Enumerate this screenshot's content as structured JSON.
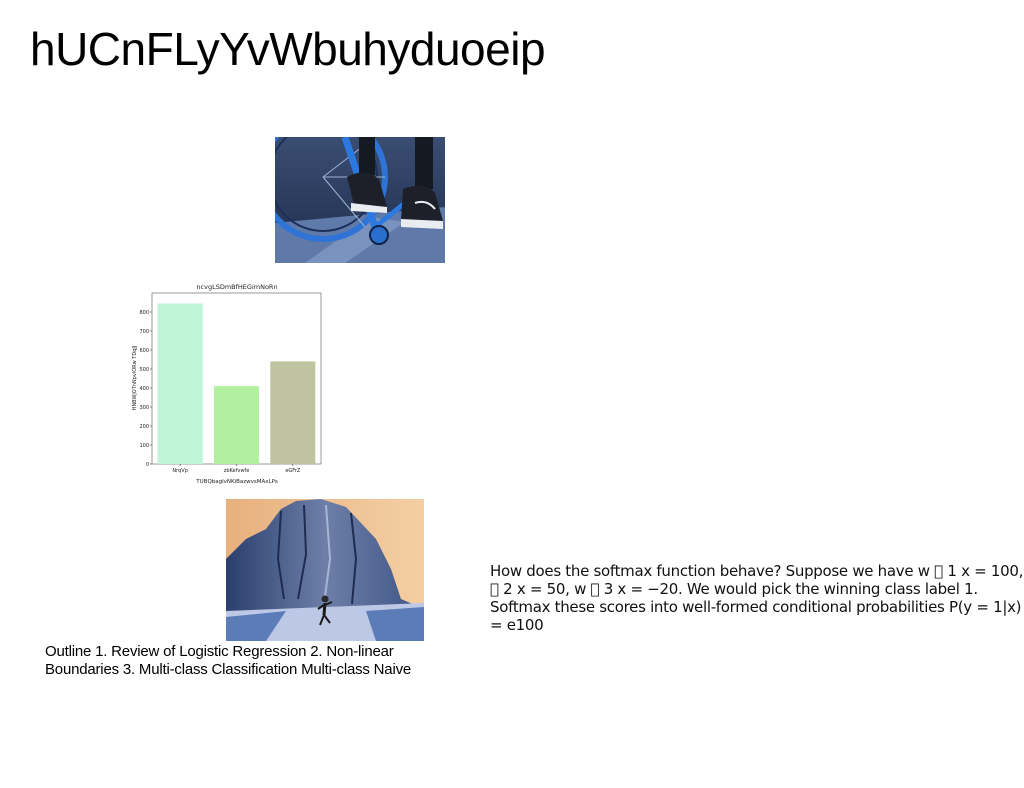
{
  "slide": {
    "title": "hUCnFLyYvWbuhyduoeip",
    "outline_text": "Outline 1. Review of Logistic Regression 2. Non-linear Boundaries 3. Multi-class Classification Multi-class Naive",
    "softmax_text": "How does the softmax function behave? Suppose we have w \u0000 1 x = 100, \u0000 2 x = 50, w \u0000 3 x = −20. We would pick the winning class label 1. Softmax these scores into well-formed conditional probabilities P(y = 1|x) = e100"
  },
  "images": {
    "photo_1": {
      "icon": "bike-sneakers-photo"
    },
    "photo_2": {
      "icon": "cliff-runner-photo"
    }
  },
  "chart_data": {
    "type": "bar",
    "title": "ncvgLSDmBfHEGimNoRn",
    "xlabel": "TUBQbaglvNKiBazwvsMAxLPs",
    "ylabel": "HNBWjOTnNpvlORw TDqJJ",
    "categories": [
      "NrqVp",
      "zbKefvwfe",
      "eGFrZ"
    ],
    "values": [
      845,
      410,
      540
    ],
    "ylim": [
      0,
      900
    ],
    "yticks": [
      0,
      100,
      200,
      300,
      400,
      500,
      600,
      700,
      800
    ],
    "colors": [
      "#bff5d6",
      "#b2f0a0",
      "#bfc3a0"
    ],
    "grid": false,
    "legend": "none"
  }
}
